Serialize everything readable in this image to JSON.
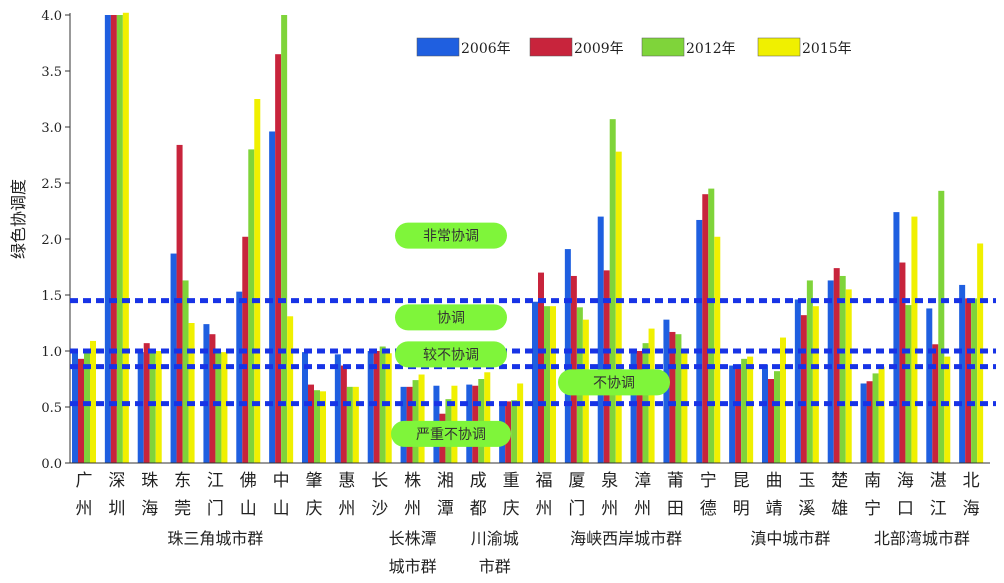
{
  "chart_data": {
    "type": "bar",
    "ylabel": "绿色协调度",
    "ylim": [
      0,
      4.0
    ],
    "yticks": [
      "0.0",
      "0.5",
      "1.0",
      "1.5",
      "2.0",
      "2.5",
      "3.0",
      "3.5",
      "4.0"
    ],
    "categories": [
      [
        "广",
        "州"
      ],
      [
        "深",
        "圳"
      ],
      [
        "珠",
        "海"
      ],
      [
        "东",
        "莞"
      ],
      [
        "江",
        "门"
      ],
      [
        "佛",
        "山"
      ],
      [
        "中",
        "山"
      ],
      [
        "肇",
        "庆"
      ],
      [
        "惠",
        "州"
      ],
      [
        "长",
        "沙"
      ],
      [
        "株",
        "州"
      ],
      [
        "湘",
        "潭"
      ],
      [
        "成",
        "都"
      ],
      [
        "重",
        "庆"
      ],
      [
        "福",
        "州"
      ],
      [
        "厦",
        "门"
      ],
      [
        "泉",
        "州"
      ],
      [
        "漳",
        "州"
      ],
      [
        "莆",
        "田"
      ],
      [
        "宁",
        "德"
      ],
      [
        "昆",
        "明"
      ],
      [
        "曲",
        "靖"
      ],
      [
        "玉",
        "溪"
      ],
      [
        "楚",
        "雄"
      ],
      [
        "南",
        "宁"
      ],
      [
        "海",
        "口"
      ],
      [
        "湛",
        "江"
      ],
      [
        "北",
        "海"
      ]
    ],
    "series": [
      {
        "name": "2006年",
        "color": "#1f5fe0",
        "values": [
          1.0,
          4.0,
          0.99,
          1.87,
          1.24,
          1.53,
          2.96,
          0.99,
          0.97,
          1.0,
          0.68,
          0.69,
          0.7,
          0.54,
          1.44,
          1.91,
          2.2,
          1.0,
          1.28,
          2.17,
          0.87,
          0.88,
          1.46,
          1.63,
          0.71,
          2.24,
          1.38,
          1.59
        ]
      },
      {
        "name": "2009年",
        "color": "#c8243c",
        "values": [
          0.93,
          4.0,
          1.07,
          2.84,
          1.15,
          2.02,
          3.65,
          0.7,
          0.87,
          1.0,
          0.68,
          0.44,
          0.69,
          0.55,
          1.7,
          1.67,
          1.72,
          1.0,
          1.17,
          2.4,
          0.86,
          0.75,
          1.32,
          1.74,
          0.73,
          1.79,
          1.06,
          1.47
        ]
      },
      {
        "name": "2012年",
        "color": "#7fd43a",
        "values": [
          1.02,
          4.0,
          1.0,
          1.63,
          0.99,
          2.8,
          4.0,
          0.65,
          0.68,
          1.04,
          0.74,
          0.57,
          0.75,
          0.56,
          1.4,
          1.39,
          3.07,
          1.07,
          1.15,
          2.45,
          0.93,
          0.82,
          1.63,
          1.67,
          0.8,
          1.41,
          2.43,
          1.47
        ]
      },
      {
        "name": "2015年",
        "color": "#f0f000",
        "values": [
          1.09,
          4.02,
          1.0,
          1.25,
          0.99,
          3.25,
          1.31,
          0.64,
          0.68,
          0.98,
          0.79,
          0.69,
          0.81,
          0.71,
          1.4,
          1.28,
          2.78,
          1.2,
          1.0,
          2.02,
          0.95,
          1.12,
          1.4,
          1.55,
          0.86,
          2.2,
          0.95,
          1.96
        ]
      }
    ],
    "thresholds": [
      1.45,
      1.0,
      0.86,
      0.53
    ],
    "levels": [
      {
        "label": "非常协调",
        "y": 2.03
      },
      {
        "label": "协调",
        "y": 1.3
      },
      {
        "label": "较不协调",
        "y": 0.97
      },
      {
        "label": "不协调",
        "y": 0.72
      },
      {
        "label": "严重不协调",
        "y": 0.26
      }
    ],
    "groups": [
      {
        "lines": [
          "珠三角城市群"
        ],
        "start": 0,
        "end": 8
      },
      {
        "lines": [
          "长株潭",
          "城市群"
        ],
        "start": 9,
        "end": 11
      },
      {
        "lines": [
          "川渝城",
          "市群"
        ],
        "start": 12,
        "end": 13
      },
      {
        "lines": [
          "海峡西岸城市群"
        ],
        "start": 14,
        "end": 19
      },
      {
        "lines": [
          "滇中城市群"
        ],
        "start": 20,
        "end": 23
      },
      {
        "lines": [
          "北部湾城市群"
        ],
        "start": 24,
        "end": 27
      }
    ],
    "legend_position": "top-center"
  }
}
